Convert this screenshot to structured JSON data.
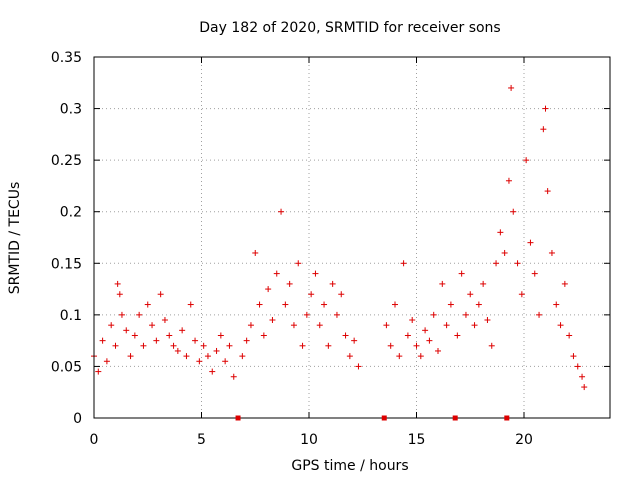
{
  "chart_data": {
    "type": "scatter",
    "title": "Day 182 of 2020, SRMTID for receiver sons",
    "xlabel": "GPS time / hours",
    "ylabel": "SRMTID / TECUs",
    "xlim": [
      0,
      24
    ],
    "ylim": [
      0,
      0.35
    ],
    "x_ticks": [
      0,
      5,
      10,
      15,
      20
    ],
    "x_tick_labels": [
      "0",
      "5",
      "10",
      "15",
      "20"
    ],
    "y_ticks": [
      0,
      0.05,
      0.1,
      0.15,
      0.2,
      0.25,
      0.3,
      0.35
    ],
    "y_tick_labels": [
      "0",
      "0.05",
      "0.1",
      "0.15",
      "0.2",
      "0.25",
      "0.3",
      "0.35"
    ],
    "grid": true,
    "marker": "+",
    "color": "#dd0000",
    "gap_markers_x": [
      6.7,
      13.5,
      16.8,
      19.2
    ],
    "series": [
      {
        "name": "SRMTID",
        "points": [
          [
            0.0,
            0.06
          ],
          [
            0.2,
            0.045
          ],
          [
            0.4,
            0.075
          ],
          [
            0.6,
            0.055
          ],
          [
            0.8,
            0.09
          ],
          [
            1.0,
            0.07
          ],
          [
            1.1,
            0.13
          ],
          [
            1.2,
            0.12
          ],
          [
            1.3,
            0.1
          ],
          [
            1.5,
            0.085
          ],
          [
            1.7,
            0.06
          ],
          [
            1.9,
            0.08
          ],
          [
            2.1,
            0.1
          ],
          [
            2.3,
            0.07
          ],
          [
            2.5,
            0.11
          ],
          [
            2.7,
            0.09
          ],
          [
            2.9,
            0.075
          ],
          [
            3.1,
            0.12
          ],
          [
            3.3,
            0.095
          ],
          [
            3.5,
            0.08
          ],
          [
            3.7,
            0.07
          ],
          [
            3.9,
            0.065
          ],
          [
            4.1,
            0.085
          ],
          [
            4.3,
            0.06
          ],
          [
            4.5,
            0.11
          ],
          [
            4.7,
            0.075
          ],
          [
            4.9,
            0.055
          ],
          [
            5.1,
            0.07
          ],
          [
            5.3,
            0.06
          ],
          [
            5.5,
            0.045
          ],
          [
            5.7,
            0.065
          ],
          [
            5.9,
            0.08
          ],
          [
            6.1,
            0.055
          ],
          [
            6.3,
            0.07
          ],
          [
            6.5,
            0.04
          ],
          [
            6.9,
            0.06
          ],
          [
            7.1,
            0.075
          ],
          [
            7.3,
            0.09
          ],
          [
            7.5,
            0.16
          ],
          [
            7.7,
            0.11
          ],
          [
            7.9,
            0.08
          ],
          [
            8.1,
            0.125
          ],
          [
            8.3,
            0.095
          ],
          [
            8.5,
            0.14
          ],
          [
            8.7,
            0.2
          ],
          [
            8.9,
            0.11
          ],
          [
            9.1,
            0.13
          ],
          [
            9.3,
            0.09
          ],
          [
            9.5,
            0.15
          ],
          [
            9.7,
            0.07
          ],
          [
            9.9,
            0.1
          ],
          [
            10.1,
            0.12
          ],
          [
            10.3,
            0.14
          ],
          [
            10.5,
            0.09
          ],
          [
            10.7,
            0.11
          ],
          [
            10.9,
            0.07
          ],
          [
            11.1,
            0.13
          ],
          [
            11.3,
            0.1
          ],
          [
            11.5,
            0.12
          ],
          [
            11.7,
            0.08
          ],
          [
            11.9,
            0.06
          ],
          [
            12.1,
            0.075
          ],
          [
            12.3,
            0.05
          ],
          [
            13.6,
            0.09
          ],
          [
            13.8,
            0.07
          ],
          [
            14.0,
            0.11
          ],
          [
            14.2,
            0.06
          ],
          [
            14.4,
            0.15
          ],
          [
            14.6,
            0.08
          ],
          [
            14.8,
            0.095
          ],
          [
            15.0,
            0.07
          ],
          [
            15.2,
            0.06
          ],
          [
            15.4,
            0.085
          ],
          [
            15.6,
            0.075
          ],
          [
            15.8,
            0.1
          ],
          [
            16.0,
            0.065
          ],
          [
            16.2,
            0.13
          ],
          [
            16.4,
            0.09
          ],
          [
            16.6,
            0.11
          ],
          [
            16.9,
            0.08
          ],
          [
            17.1,
            0.14
          ],
          [
            17.3,
            0.1
          ],
          [
            17.5,
            0.12
          ],
          [
            17.7,
            0.09
          ],
          [
            17.9,
            0.11
          ],
          [
            18.1,
            0.13
          ],
          [
            18.3,
            0.095
          ],
          [
            18.5,
            0.07
          ],
          [
            18.7,
            0.15
          ],
          [
            18.9,
            0.18
          ],
          [
            19.1,
            0.16
          ],
          [
            19.3,
            0.23
          ],
          [
            19.4,
            0.32
          ],
          [
            19.5,
            0.2
          ],
          [
            19.7,
            0.15
          ],
          [
            19.9,
            0.12
          ],
          [
            20.1,
            0.25
          ],
          [
            20.3,
            0.17
          ],
          [
            20.5,
            0.14
          ],
          [
            20.7,
            0.1
          ],
          [
            20.9,
            0.28
          ],
          [
            21.0,
            0.3
          ],
          [
            21.1,
            0.22
          ],
          [
            21.3,
            0.16
          ],
          [
            21.5,
            0.11
          ],
          [
            21.7,
            0.09
          ],
          [
            21.9,
            0.13
          ],
          [
            22.1,
            0.08
          ],
          [
            22.3,
            0.06
          ],
          [
            22.5,
            0.05
          ],
          [
            22.7,
            0.04
          ],
          [
            22.8,
            0.03
          ]
        ]
      }
    ]
  }
}
